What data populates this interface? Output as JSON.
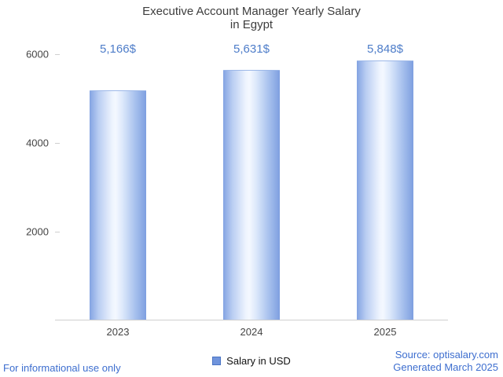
{
  "title": {
    "line1": "Executive Account Manager Yearly Salary",
    "line2": "in Egypt"
  },
  "chart_data": {
    "type": "bar",
    "title": "Executive Account Manager Yearly Salary in Egypt",
    "categories": [
      "2023",
      "2024",
      "2025"
    ],
    "values": [
      5166,
      5631,
      5848
    ],
    "value_labels": [
      "5,166$",
      "5,631$",
      "5,848$"
    ],
    "xlabel": "",
    "ylabel": "",
    "ylim": [
      0,
      6000
    ],
    "yticks": [
      2000,
      4000,
      6000
    ],
    "grid": false,
    "legend_position": "bottom",
    "series": [
      {
        "name": "Salary in USD",
        "values": [
          5166,
          5631,
          5848
        ]
      }
    ],
    "series_color": "#7094dc"
  },
  "legend": {
    "label": "Salary in USD"
  },
  "footer": {
    "left": "For informational use only",
    "source": "Source: optisalary.com",
    "generated": "Generated March 2025"
  },
  "colors": {
    "value_label": "#4e7dc9",
    "link_blue": "#3d6ecf",
    "title_gray": "#3d3d3d",
    "axis_line": "#cfcfcf"
  }
}
